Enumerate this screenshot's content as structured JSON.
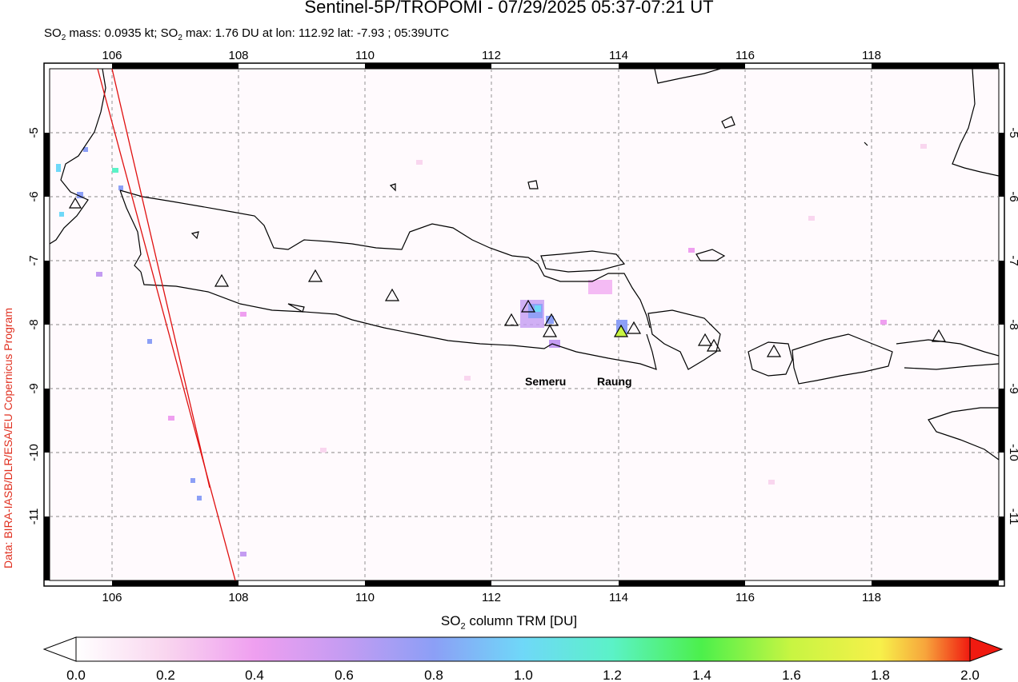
{
  "title": "Sentinel-5P/TROPOMI - 07/29/2025 05:37-07:21 UT",
  "subtitle": {
    "mass_prefix": "SO",
    "mass_sub": "2",
    "mass_text": " mass: 0.0935 kt; SO",
    "max_sub": "2",
    "max_text": " max: 1.76 DU at lon: 112.92 lat: -7.93 ; 05:39UTC"
  },
  "credit": "Data: BIRA-IASB/DLR/ESA/EU Copernicus Program",
  "map": {
    "lon_range": [
      105.0,
      120.0
    ],
    "lat_range": [
      -12.0,
      -4.0
    ],
    "lon_ticks": [
      "106",
      "108",
      "110",
      "112",
      "114",
      "116",
      "118"
    ],
    "lat_ticks": [
      "-5",
      "-6",
      "-7",
      "-8",
      "-9",
      "-10",
      "-11"
    ],
    "volcano_labels": {
      "semeru": "Semeru",
      "raung": "Raung"
    }
  },
  "colorbar": {
    "label_prefix": "SO",
    "label_sub": "2",
    "label_text": " column TRM [DU]",
    "ticks": [
      "0.0",
      "0.2",
      "0.4",
      "0.6",
      "0.8",
      "1.0",
      "1.2",
      "1.4",
      "1.6",
      "1.8",
      "2.0"
    ],
    "colors": [
      "#ffffff",
      "#f9d6ef",
      "#ef9ff0",
      "#c49cf2",
      "#8c9ff6",
      "#6fd8f8",
      "#5bf2c7",
      "#4cf04b",
      "#c8f542",
      "#f7f04a",
      "#f7a53c",
      "#f01a10"
    ]
  }
}
